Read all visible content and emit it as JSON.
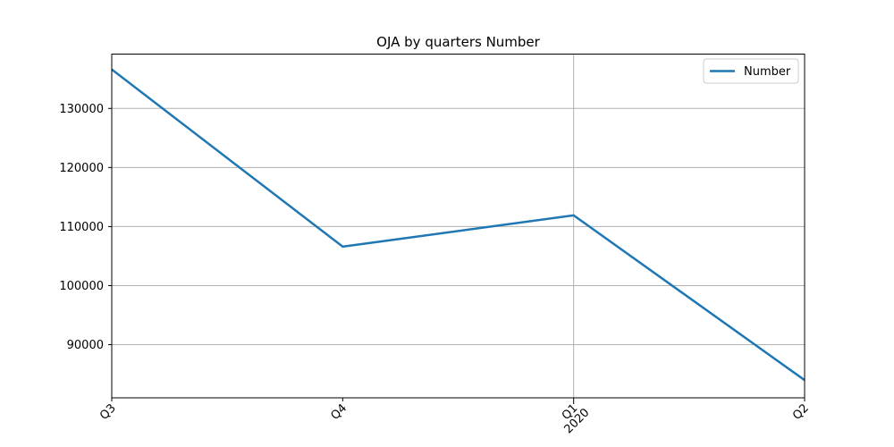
{
  "chart_data": {
    "type": "line",
    "title": "OJA by quarters Number",
    "xlabel": "",
    "ylabel": "",
    "categories": [
      "Q3",
      "Q4",
      "Q1",
      "Q2"
    ],
    "x_secondary_labels": [
      "",
      "",
      "2020",
      ""
    ],
    "series": [
      {
        "name": "Number",
        "values": [
          136600,
          106600,
          111900,
          84000
        ]
      }
    ],
    "ylim": [
      81000,
      139200
    ],
    "yticks": [
      90000,
      100000,
      110000,
      120000,
      130000
    ],
    "ytick_labels": [
      "90000",
      "100000",
      "110000",
      "120000",
      "130000"
    ],
    "grid": {
      "y": true,
      "x_major": "Q1"
    },
    "legend": "top-right",
    "colors": {
      "series": "#1f77b4",
      "grid": "#b0b0b0",
      "axis": "#000000",
      "legend_border": "#cccccc"
    }
  }
}
